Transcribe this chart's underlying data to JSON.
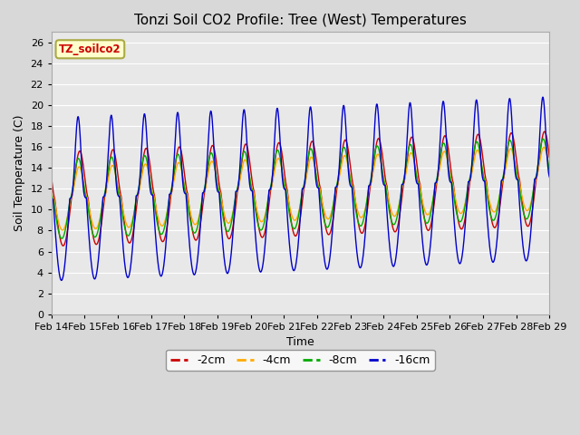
{
  "title": "Tonzi Soil CO2 Profile: Tree (West) Temperatures",
  "xlabel": "Time",
  "ylabel": "Soil Temperature (C)",
  "legend_label": "TZ_soilco2",
  "series_labels": [
    "-2cm",
    "-4cm",
    "-8cm",
    "-16cm"
  ],
  "series_colors": [
    "#cc0000",
    "#ffaa00",
    "#00aa00",
    "#0000cc"
  ],
  "ylim": [
    0,
    27
  ],
  "yticks": [
    0,
    2,
    4,
    6,
    8,
    10,
    12,
    14,
    16,
    18,
    20,
    22,
    24,
    26
  ],
  "date_labels": [
    "Feb 14",
    "Feb 15",
    "Feb 16",
    "Feb 17",
    "Feb 18",
    "Feb 19",
    "Feb 20",
    "Feb 21",
    "Feb 22",
    "Feb 23",
    "Feb 24",
    "Feb 25",
    "Feb 26",
    "Feb 27",
    "Feb 28",
    "Feb 29"
  ],
  "n_days": 15,
  "background_color": "#e8e8e8",
  "plot_bg_color": "#e8e8e8",
  "legend_box_color": "#ffffcc",
  "legend_box_edge": "#aaaa44"
}
